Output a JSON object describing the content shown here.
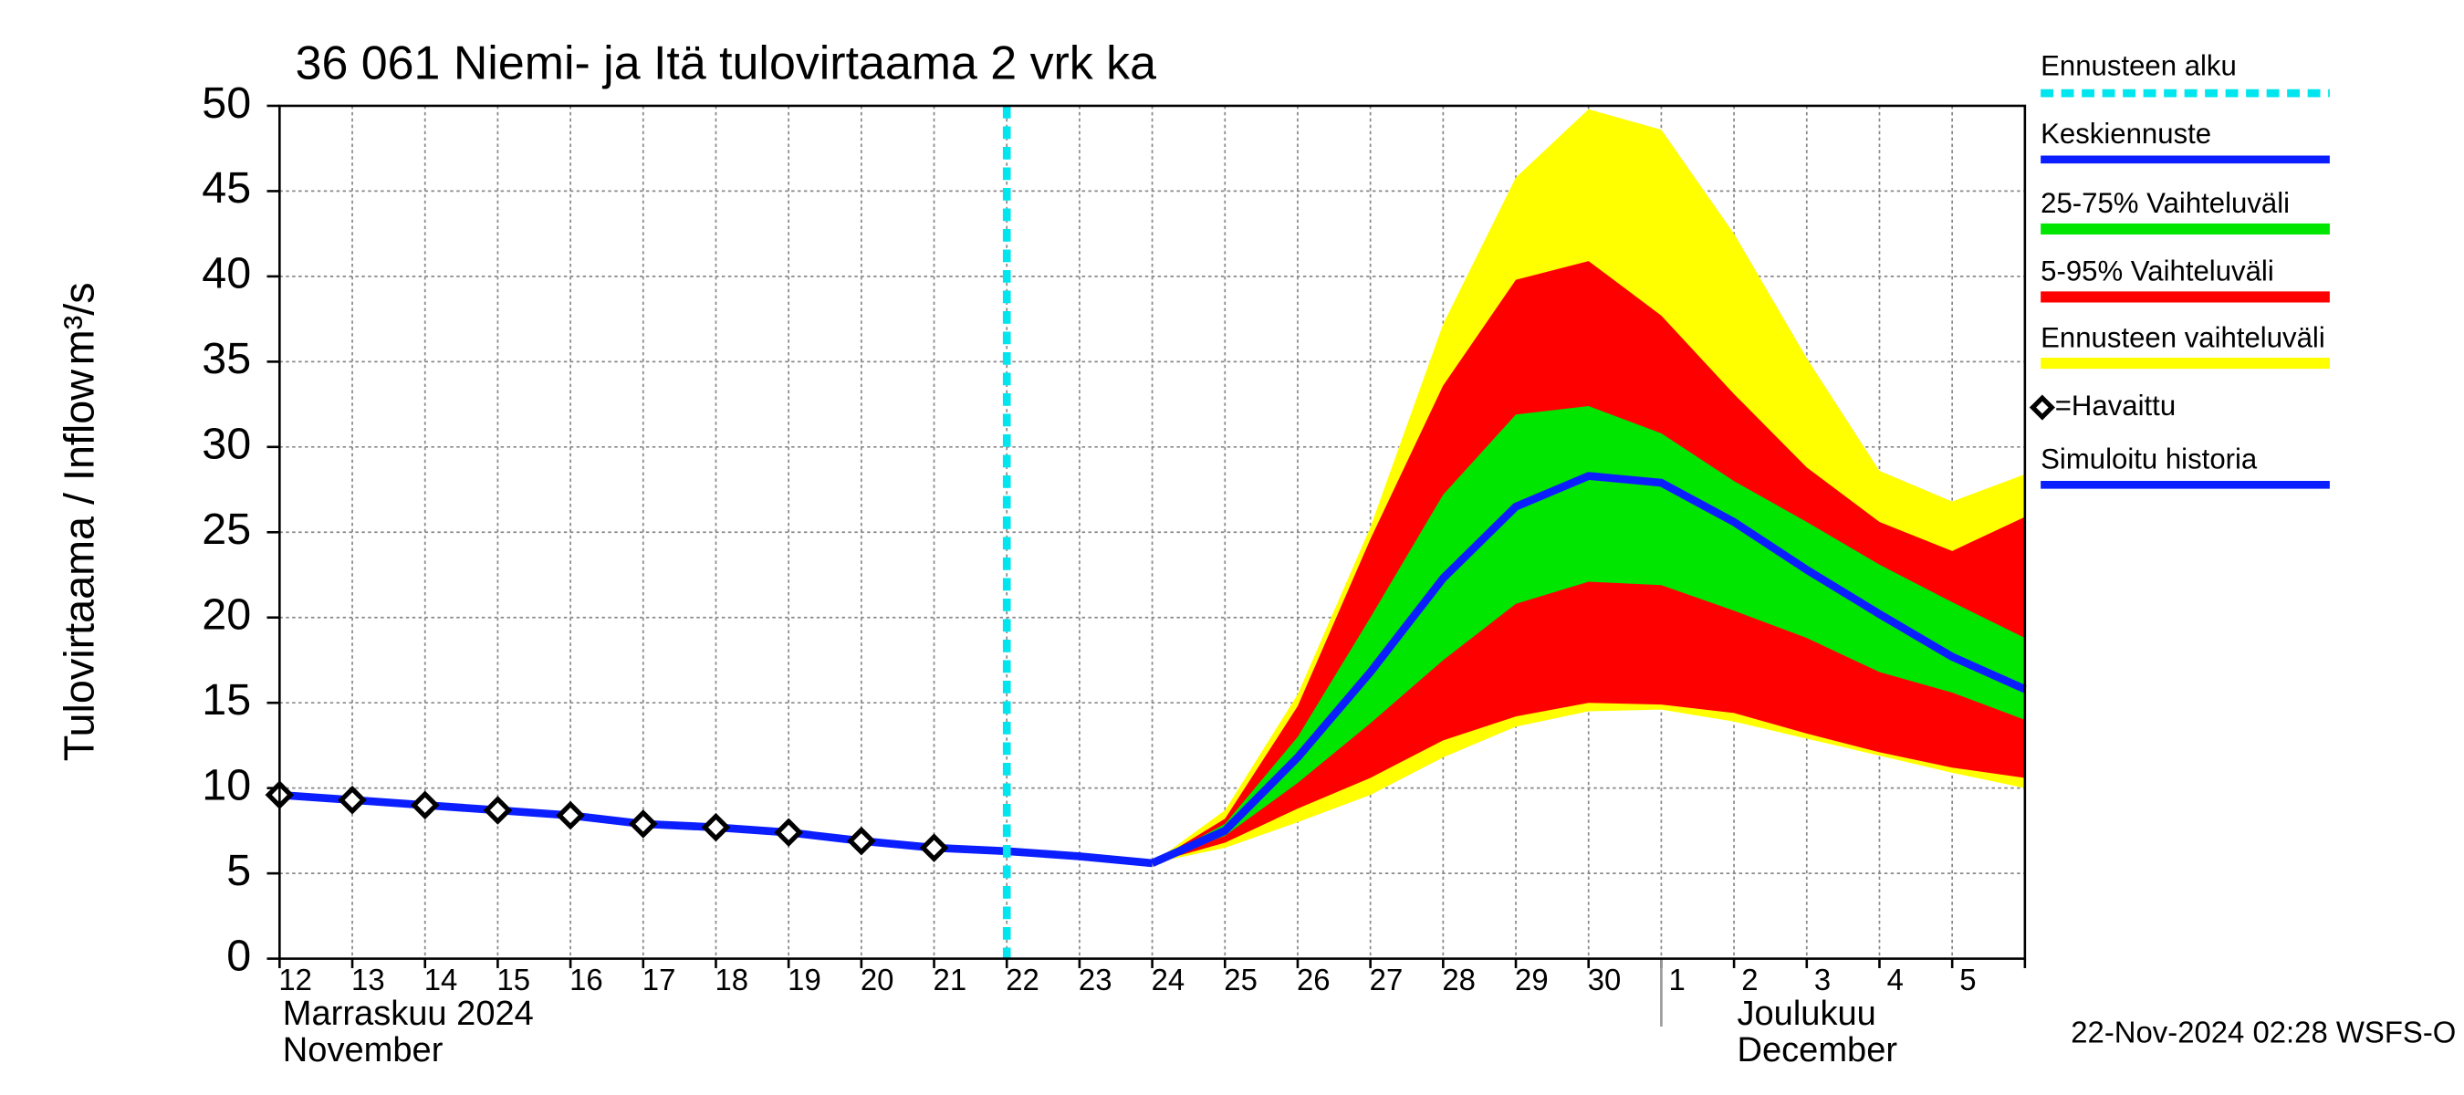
{
  "chart_data": {
    "type": "line",
    "title": "36 061 Niemi- ja Itä tulovirtaama 2 vrk ka",
    "y_label": "Tulovirtaama / Inflow",
    "y_unit": "m³/s",
    "categories": [
      "12",
      "13",
      "14",
      "15",
      "16",
      "17",
      "18",
      "19",
      "20",
      "21",
      "22",
      "23",
      "24",
      "25",
      "26",
      "27",
      "28",
      "29",
      "30",
      "1",
      "2",
      "3",
      "4",
      "5",
      null
    ],
    "month_labels": [
      {
        "at": "12",
        "lines": [
          "Marraskuu 2024",
          "November"
        ]
      },
      {
        "at": "1",
        "lines": [
          "Joulukuu",
          "December"
        ]
      }
    ],
    "ylim": [
      0,
      50
    ],
    "yticks": [
      0,
      5,
      10,
      15,
      20,
      25,
      30,
      35,
      40,
      45,
      50
    ],
    "grid": true,
    "vline": {
      "name": "Ennusteen alku",
      "color": "#00e5ee",
      "at": "22"
    },
    "series": [
      {
        "name": "Keskiennuste",
        "type": "line",
        "color": "#0a1eff",
        "values": [
          null,
          null,
          null,
          null,
          null,
          null,
          null,
          null,
          null,
          null,
          null,
          null,
          5.6,
          7.5,
          11.8,
          16.8,
          22.3,
          26.5,
          28.3,
          27.9,
          25.6,
          22.8,
          20.2,
          17.7,
          15.8
        ]
      },
      {
        "name": "25-75% Vaihteluväli",
        "type": "band",
        "color": "#00e600",
        "low": [
          null,
          null,
          null,
          null,
          null,
          null,
          null,
          null,
          null,
          null,
          null,
          null,
          5.6,
          7.2,
          10.3,
          13.8,
          17.5,
          20.8,
          22.1,
          21.9,
          20.4,
          18.8,
          16.8,
          15.6,
          14.0
        ],
        "high": [
          null,
          null,
          null,
          null,
          null,
          null,
          null,
          null,
          null,
          null,
          null,
          null,
          5.6,
          7.9,
          13.0,
          20.0,
          27.2,
          31.9,
          32.4,
          30.8,
          28.0,
          25.6,
          23.1,
          20.9,
          18.8
        ]
      },
      {
        "name": "5-95% Vaihteluväli",
        "type": "band",
        "color": "#ff0000",
        "low": [
          null,
          null,
          null,
          null,
          null,
          null,
          null,
          null,
          null,
          null,
          null,
          null,
          5.6,
          6.8,
          8.8,
          10.6,
          12.8,
          14.2,
          15.0,
          14.9,
          14.4,
          13.2,
          12.1,
          11.2,
          10.6
        ],
        "high": [
          null,
          null,
          null,
          null,
          null,
          null,
          null,
          null,
          null,
          null,
          null,
          null,
          5.6,
          8.2,
          14.8,
          24.6,
          33.6,
          39.8,
          40.9,
          37.7,
          33.1,
          28.8,
          25.6,
          23.9,
          25.9
        ]
      },
      {
        "name": "Ennusteen vaihteluväli",
        "type": "band",
        "color": "#ffff00",
        "low": [
          null,
          null,
          null,
          null,
          null,
          null,
          null,
          null,
          null,
          null,
          null,
          null,
          5.6,
          6.5,
          8.0,
          9.6,
          11.8,
          13.6,
          14.5,
          14.6,
          13.9,
          12.9,
          11.9,
          10.9,
          10.0
        ],
        "high": [
          null,
          null,
          null,
          null,
          null,
          null,
          null,
          null,
          null,
          null,
          null,
          null,
          5.6,
          8.7,
          15.5,
          25.3,
          37.2,
          45.8,
          49.8,
          48.6,
          42.5,
          35.2,
          28.6,
          26.8,
          28.4
        ]
      },
      {
        "name": "=Havaittu",
        "type": "marker",
        "color": "#000000",
        "values": [
          9.6,
          9.3,
          9.0,
          8.7,
          8.4,
          7.9,
          7.7,
          7.4,
          6.9,
          6.5,
          null,
          null,
          null,
          null,
          null,
          null,
          null,
          null,
          null,
          null,
          null,
          null,
          null,
          null,
          null
        ]
      },
      {
        "name": "Simuloitu historia",
        "type": "line",
        "color": "#0a1eff",
        "values": [
          9.6,
          9.3,
          9.0,
          8.7,
          8.4,
          7.9,
          7.7,
          7.4,
          6.9,
          6.5,
          6.3,
          6.0,
          5.6,
          null,
          null,
          null,
          null,
          null,
          null,
          null,
          null,
          null,
          null,
          null,
          null
        ]
      }
    ],
    "footer": "22-Nov-2024 02:28 WSFS-O"
  }
}
